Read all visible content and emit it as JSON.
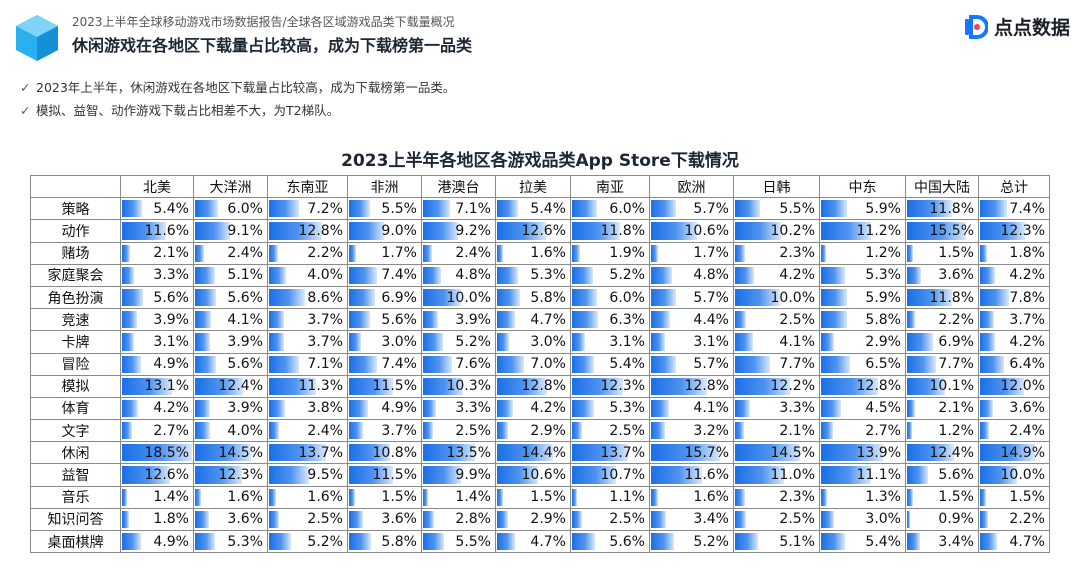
{
  "header": {
    "breadcrumb": "2023上半年全球移动游戏市场数据报告/全球各区域游戏品类下载量概况",
    "headline": "休闲游戏在各地区下载量占比较高，成为下载榜第一品类",
    "brand_name": "点点数据"
  },
  "bullets": [
    {
      "mark": "✓",
      "text": "2023年上半年，休闲游戏在各地区下载量占比较高，成为下载榜第一品类。"
    },
    {
      "mark": "✓",
      "text": "模拟、益智、动作游戏下载占比相差不大，为T2梯队。"
    }
  ],
  "colors": {
    "bar": "#1a6fe6",
    "logo_cube": "#1aa8e8",
    "brand_mark": "#1677ff"
  },
  "chart_data": {
    "type": "table",
    "title": "2023上半年各地区各游戏品类App Store下载情况",
    "regions": [
      "北美",
      "大洋洲",
      "东南亚",
      "非洲",
      "港澳台",
      "拉美",
      "南亚",
      "欧洲",
      "日韩",
      "中东",
      "中国大陆",
      "总计"
    ],
    "rows": [
      {
        "category": "策略",
        "values": [
          5.4,
          6.0,
          7.2,
          5.5,
          7.1,
          5.4,
          6.0,
          5.7,
          5.5,
          5.9,
          11.8,
          7.4
        ],
        "labels": [
          "5.4%",
          "6.0%",
          "7.2%",
          "5.5%",
          "7.1%",
          "5.4%",
          "6.0%",
          "5.7%",
          "5.5%",
          "5.9%",
          "11.8%",
          "7.4%"
        ]
      },
      {
        "category": "动作",
        "values": [
          11.6,
          9.1,
          12.8,
          9.0,
          9.2,
          12.6,
          11.8,
          10.6,
          10.2,
          11.2,
          15.5,
          12.3
        ],
        "labels": [
          "11.6%",
          "9.1%",
          "12.8%",
          "9.0%",
          "9.2%",
          "12.6%",
          "11.8%",
          "10.6%",
          "10.2%",
          "11.2%",
          "15.5%",
          "12.3%"
        ]
      },
      {
        "category": "赌场",
        "values": [
          2.1,
          2.4,
          2.2,
          1.7,
          2.4,
          1.6,
          1.9,
          1.7,
          2.3,
          1.2,
          1.5,
          1.8
        ],
        "labels": [
          "2.1%",
          "2.4%",
          "2.2%",
          "1.7%",
          "2.4%",
          "1.6%",
          "1.9%",
          "1.7%",
          "2.3%",
          "1.2%",
          "1.5%",
          "1.8%"
        ]
      },
      {
        "category": "家庭聚会",
        "values": [
          3.3,
          5.1,
          4.0,
          7.4,
          4.8,
          5.3,
          5.2,
          4.8,
          4.2,
          5.3,
          3.6,
          4.2
        ],
        "labels": [
          "3.3%",
          "5.1%",
          "4.0%",
          "7.4%",
          "4.8%",
          "5.3%",
          "5.2%",
          "4.8%",
          "4.2%",
          "5.3%",
          "3.6%",
          "4.2%"
        ]
      },
      {
        "category": "角色扮演",
        "values": [
          5.6,
          5.6,
          8.6,
          6.9,
          10.0,
          5.8,
          6.0,
          5.7,
          10.0,
          5.9,
          11.8,
          7.8
        ],
        "labels": [
          "5.6%",
          "5.6%",
          "8.6%",
          "6.9%",
          "10.0%",
          "5.8%",
          "6.0%",
          "5.7%",
          "10.0%",
          "5.9%",
          "11.8%",
          "7.8%"
        ]
      },
      {
        "category": "竞速",
        "values": [
          3.9,
          4.1,
          3.7,
          5.6,
          3.9,
          4.7,
          6.3,
          4.4,
          2.5,
          5.8,
          2.2,
          3.7
        ],
        "labels": [
          "3.9%",
          "4.1%",
          "3.7%",
          "5.6%",
          "3.9%",
          "4.7%",
          "6.3%",
          "4.4%",
          "2.5%",
          "5.8%",
          "2.2%",
          "3.7%"
        ]
      },
      {
        "category": "卡牌",
        "values": [
          3.1,
          3.9,
          3.7,
          3.0,
          5.2,
          3.0,
          3.1,
          3.1,
          4.1,
          2.9,
          6.9,
          4.2
        ],
        "labels": [
          "3.1%",
          "3.9%",
          "3.7%",
          "3.0%",
          "5.2%",
          "3.0%",
          "3.1%",
          "3.1%",
          "4.1%",
          "2.9%",
          "6.9%",
          "4.2%"
        ]
      },
      {
        "category": "冒险",
        "values": [
          4.9,
          5.6,
          7.1,
          7.4,
          7.6,
          7.0,
          5.4,
          5.7,
          7.7,
          6.5,
          7.7,
          6.4
        ],
        "labels": [
          "4.9%",
          "5.6%",
          "7.1%",
          "7.4%",
          "7.6%",
          "7.0%",
          "5.4%",
          "5.7%",
          "7.7%",
          "6.5%",
          "7.7%",
          "6.4%"
        ]
      },
      {
        "category": "模拟",
        "values": [
          13.1,
          12.4,
          11.3,
          11.5,
          10.3,
          12.8,
          12.3,
          12.8,
          12.2,
          12.8,
          10.1,
          12.0
        ],
        "labels": [
          "13.1%",
          "12.4%",
          "11.3%",
          "11.5%",
          "10.3%",
          "12.8%",
          "12.3%",
          "12.8%",
          "12.2%",
          "12.8%",
          "10.1%",
          "12.0%"
        ]
      },
      {
        "category": "体育",
        "values": [
          4.2,
          3.9,
          3.8,
          4.9,
          3.3,
          4.2,
          5.3,
          4.1,
          3.3,
          4.5,
          2.1,
          3.6
        ],
        "labels": [
          "4.2%",
          "3.9%",
          "3.8%",
          "4.9%",
          "3.3%",
          "4.2%",
          "5.3%",
          "4.1%",
          "3.3%",
          "4.5%",
          "2.1%",
          "3.6%"
        ]
      },
      {
        "category": "文字",
        "values": [
          2.7,
          4.0,
          2.4,
          3.7,
          2.5,
          2.9,
          2.5,
          3.2,
          2.1,
          2.7,
          1.2,
          2.4
        ],
        "labels": [
          "2.7%",
          "4.0%",
          "2.4%",
          "3.7%",
          "2.5%",
          "2.9%",
          "2.5%",
          "3.2%",
          "2.1%",
          "2.7%",
          "1.2%",
          "2.4%"
        ]
      },
      {
        "category": "休闲",
        "values": [
          18.5,
          14.5,
          13.7,
          10.8,
          13.5,
          14.4,
          13.7,
          15.7,
          14.5,
          13.9,
          12.4,
          14.9
        ],
        "labels": [
          "18.5%",
          "14.5%",
          "13.7%",
          "10.8%",
          "13.5%",
          "14.4%",
          "13.7%",
          "15.7%",
          "14.5%",
          "13.9%",
          "12.4%",
          "14.9%"
        ]
      },
      {
        "category": "益智",
        "values": [
          12.6,
          12.3,
          9.5,
          11.5,
          9.9,
          10.6,
          10.7,
          11.6,
          11.0,
          11.1,
          5.6,
          10.0
        ],
        "labels": [
          "12.6%",
          "12.3%",
          "9.5%",
          "11.5%",
          "9.9%",
          "10.6%",
          "10.7%",
          "11.6%",
          "11.0%",
          "11.1%",
          "5.6%",
          "10.0%"
        ]
      },
      {
        "category": "音乐",
        "values": [
          1.4,
          1.6,
          1.6,
          1.5,
          1.4,
          1.5,
          1.1,
          1.6,
          2.3,
          1.3,
          1.5,
          1.5
        ],
        "labels": [
          "1.4%",
          "1.6%",
          "1.6%",
          "1.5%",
          "1.4%",
          "1.5%",
          "1.1%",
          "1.6%",
          "2.3%",
          "1.3%",
          "1.5%",
          "1.5%"
        ]
      },
      {
        "category": "知识问答",
        "values": [
          1.8,
          3.6,
          2.5,
          3.6,
          2.8,
          2.9,
          2.5,
          3.4,
          2.5,
          3.0,
          0.9,
          2.2
        ],
        "labels": [
          "1.8%",
          "3.6%",
          "2.5%",
          "3.6%",
          "2.8%",
          "2.9%",
          "2.5%",
          "3.4%",
          "2.5%",
          "3.0%",
          "0.9%",
          "2.2%"
        ]
      },
      {
        "category": "桌面棋牌",
        "values": [
          4.9,
          5.3,
          5.2,
          5.8,
          5.5,
          4.7,
          5.6,
          5.2,
          5.1,
          5.4,
          3.4,
          4.7
        ],
        "labels": [
          "4.9%",
          "5.3%",
          "5.2%",
          "5.8%",
          "5.5%",
          "4.7%",
          "5.6%",
          "5.2%",
          "5.1%",
          "5.4%",
          "3.4%",
          "4.7%"
        ]
      }
    ]
  }
}
